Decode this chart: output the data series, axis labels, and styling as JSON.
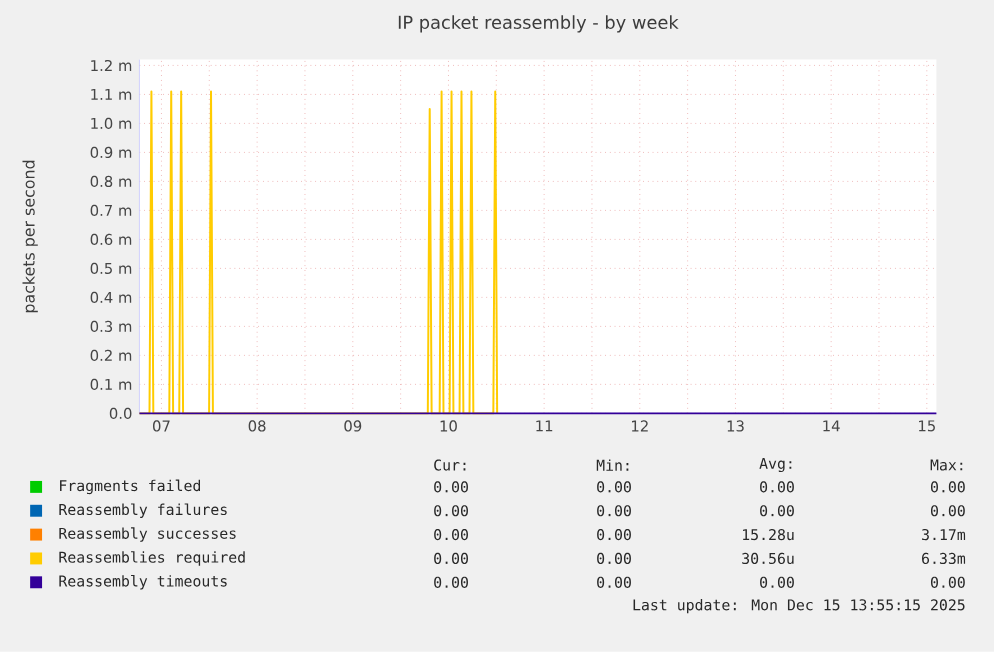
{
  "chart_data": {
    "type": "line",
    "title": "IP packet reassembly - by week",
    "ylabel": "packets per second",
    "xlim": [
      7.27,
      15.6
    ],
    "ylim": [
      0,
      1.22
    ],
    "xticks": [
      {
        "value": 7.5,
        "label": "07"
      },
      {
        "value": 8,
        "label": null
      },
      {
        "value": 8.5,
        "label": "08"
      },
      {
        "value": 9,
        "label": null
      },
      {
        "value": 9.5,
        "label": "09"
      },
      {
        "value": 10,
        "label": null
      },
      {
        "value": 10.5,
        "label": "10"
      },
      {
        "value": 11,
        "label": null
      },
      {
        "value": 11.5,
        "label": "11"
      },
      {
        "value": 12,
        "label": null
      },
      {
        "value": 12.5,
        "label": "12"
      },
      {
        "value": 13,
        "label": null
      },
      {
        "value": 13.5,
        "label": "13"
      },
      {
        "value": 14,
        "label": null
      },
      {
        "value": 14.5,
        "label": "14"
      },
      {
        "value": 15,
        "label": null
      },
      {
        "value": 15.5,
        "label": "15"
      }
    ],
    "yticks": [
      {
        "value": 0,
        "label": "0.0"
      },
      {
        "value": 0.1,
        "label": "0.1 m"
      },
      {
        "value": 0.2,
        "label": "0.2 m"
      },
      {
        "value": 0.3,
        "label": "0.3 m"
      },
      {
        "value": 0.4,
        "label": "0.4 m"
      },
      {
        "value": 0.5,
        "label": "0.5 m"
      },
      {
        "value": 0.6,
        "label": "0.6 m"
      },
      {
        "value": 0.7,
        "label": "0.7 m"
      },
      {
        "value": 0.8,
        "label": "0.8 m"
      },
      {
        "value": 0.9,
        "label": "0.9 m"
      },
      {
        "value": 1.0,
        "label": "1.0 m"
      },
      {
        "value": 1.1,
        "label": "1.1 m"
      },
      {
        "value": 1.2,
        "label": "1.2 m"
      }
    ],
    "grid": true,
    "legend": "bottom",
    "series": [
      {
        "name": "Fragments failed",
        "color": "#00cc00"
      },
      {
        "name": "Reassembly failures",
        "color": "#0066b3"
      },
      {
        "name": "Reassembly successes",
        "color": "#ff8000"
      },
      {
        "name": "Reassemblies required",
        "color": "#ffcc00",
        "x": [
          7.27,
          7.375,
          7.395,
          7.415,
          7.582,
          7.602,
          7.622,
          7.686,
          7.706,
          7.726,
          7.998,
          8.018,
          8.038,
          10.284,
          10.304,
          10.324,
          10.408,
          10.428,
          10.448,
          10.512,
          10.532,
          10.552,
          10.616,
          10.636,
          10.656,
          10.72,
          10.74,
          10.76,
          10.969,
          10.989,
          11.009
        ],
        "values": [
          0,
          0,
          1.11,
          0,
          0,
          1.11,
          0,
          0,
          1.11,
          0,
          0,
          1.11,
          0,
          0,
          1.05,
          0,
          0,
          1.11,
          0,
          0,
          1.11,
          0,
          0,
          1.11,
          0,
          0,
          1.11,
          0,
          0,
          1.11,
          0
        ]
      },
      {
        "name": "Reassembly timeouts",
        "color": "#330099",
        "x": [
          7.27,
          15.6
        ],
        "values": [
          0,
          0
        ]
      }
    ],
    "annotations": [
      "Cur:",
      "Min:",
      "Avg:",
      "Max:",
      "0.00",
      "0.00",
      "0.00",
      "0.00",
      "0.00",
      "0.00",
      "0.00",
      "0.00",
      "0.00",
      "0.00",
      "15.28u",
      "3.17m",
      "0.00",
      "0.00",
      "30.56u",
      "6.33m",
      "0.00",
      "0.00",
      "0.00",
      "0.00",
      "Last update: Mon Dec 15 13:55:15 2025"
    ]
  }
}
